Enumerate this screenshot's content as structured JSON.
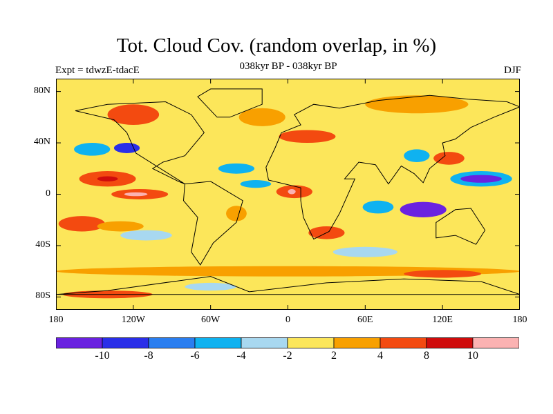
{
  "header": {
    "title": "Tot. Cloud Cov. (random overlap, in %)",
    "subtitle": "038kyr BP - 038kyr BP",
    "experiment": "Expt = tdwzE-tdacE",
    "season": "DJF"
  },
  "map": {
    "lat_labels": [
      "80N",
      "40N",
      "0",
      "40S",
      "80S"
    ],
    "lon_labels": [
      "180",
      "120W",
      "60W",
      "0",
      "60E",
      "120E",
      "180"
    ],
    "lat_values": [
      80,
      40,
      0,
      -40,
      -80
    ],
    "lon_values": [
      -180,
      -120,
      -60,
      0,
      60,
      120,
      180
    ],
    "lat_range": [
      -90,
      90
    ],
    "lon_range": [
      -180,
      180
    ],
    "background_fill": "#fce65a",
    "anomaly_regions": [
      {
        "name": "central-pacific-decrease",
        "lon": -152,
        "lat": 35,
        "rlon": 14,
        "rlat": 5,
        "color": "#0fb2f0"
      },
      {
        "name": "north-pacific-decrease",
        "lon": -125,
        "lat": 36,
        "rlon": 10,
        "rlat": 4,
        "color": "#2a2fe8"
      },
      {
        "name": "tropical-pacific-increase",
        "lon": -140,
        "lat": 12,
        "rlon": 22,
        "rlat": 6,
        "color": "#f34a10"
      },
      {
        "name": "tropical-pacific-core",
        "lon": -140,
        "lat": 12,
        "rlon": 8,
        "rlat": 2,
        "color": "#cf0c0c"
      },
      {
        "name": "east-pacific-increase",
        "lon": -115,
        "lat": 0,
        "rlon": 22,
        "rlat": 4,
        "color": "#f34a10"
      },
      {
        "name": "east-pacific-core",
        "lon": -118,
        "lat": 0,
        "rlon": 9,
        "rlat": 1.5,
        "color": "#fbb2b2"
      },
      {
        "name": "south-pacific-increase",
        "lon": -160,
        "lat": -23,
        "rlon": 18,
        "rlat": 6,
        "color": "#f34a10"
      },
      {
        "name": "south-pacific-band",
        "lon": -130,
        "lat": -25,
        "rlon": 18,
        "rlat": 4,
        "color": "#f8a000"
      },
      {
        "name": "south-pacific-decrease",
        "lon": -110,
        "lat": -32,
        "rlon": 20,
        "rlat": 4,
        "color": "#a8d8f0"
      },
      {
        "name": "north-atlantic-decrease",
        "lon": -40,
        "lat": 20,
        "rlon": 14,
        "rlat": 4,
        "color": "#0fb2f0"
      },
      {
        "name": "equatorial-atlantic-decrease",
        "lon": -25,
        "lat": 8,
        "rlon": 12,
        "rlat": 3,
        "color": "#0fb2f0"
      },
      {
        "name": "gulf-of-guinea-increase",
        "lon": 5,
        "lat": 2,
        "rlon": 14,
        "rlat": 5,
        "color": "#f34a10"
      },
      {
        "name": "gulf-of-guinea-core",
        "lon": 3,
        "lat": 2,
        "rlon": 3,
        "rlat": 2,
        "color": "#fbb2b2"
      },
      {
        "name": "south-atlantic-increase",
        "lon": -40,
        "lat": -15,
        "rlon": 8,
        "rlat": 6,
        "color": "#f8a000"
      },
      {
        "name": "south-africa-increase",
        "lon": 30,
        "lat": -30,
        "rlon": 14,
        "rlat": 5,
        "color": "#f34a10"
      },
      {
        "name": "indian-ocean-decrease",
        "lon": 70,
        "lat": -10,
        "rlon": 12,
        "rlat": 5,
        "color": "#0fb2f0"
      },
      {
        "name": "indonesia-decrease",
        "lon": 105,
        "lat": -12,
        "rlon": 18,
        "rlat": 6,
        "color": "#6a22e0"
      },
      {
        "name": "north-west-pacific-decrease",
        "lon": 150,
        "lat": 12,
        "rlon": 24,
        "rlat": 6,
        "color": "#0fb2f0"
      },
      {
        "name": "north-west-pacific-core",
        "lon": 150,
        "lat": 12,
        "rlon": 16,
        "rlat": 3,
        "color": "#6a22e0"
      },
      {
        "name": "japan-increase",
        "lon": 125,
        "lat": 28,
        "rlon": 12,
        "rlat": 5,
        "color": "#f34a10"
      },
      {
        "name": "east-asia-decrease",
        "lon": 100,
        "lat": 30,
        "rlon": 10,
        "rlat": 5,
        "color": "#0fb2f0"
      },
      {
        "name": "mediterranean-increase",
        "lon": 15,
        "lat": 45,
        "rlon": 22,
        "rlat": 5,
        "color": "#f34a10"
      },
      {
        "name": "north-atlantic-high-increase",
        "lon": -20,
        "lat": 60,
        "rlon": 18,
        "rlat": 7,
        "color": "#f8a000"
      },
      {
        "name": "canada-increase",
        "lon": -120,
        "lat": 62,
        "rlon": 20,
        "rlat": 8,
        "color": "#f34a10"
      },
      {
        "name": "siberia-increase",
        "lon": 100,
        "lat": 70,
        "rlon": 40,
        "rlat": 7,
        "color": "#f8a000"
      },
      {
        "name": "southern-ocean-band",
        "lon": 0,
        "lat": -60,
        "rlon": 180,
        "rlat": 4,
        "color": "#f8a000"
      },
      {
        "name": "southern-ocean-increase",
        "lon": 120,
        "lat": -62,
        "rlon": 30,
        "rlat": 3,
        "color": "#f34a10"
      },
      {
        "name": "antarctic-coast-increase",
        "lon": -140,
        "lat": -78,
        "rlon": 35,
        "rlat": 3,
        "color": "#f34a10"
      },
      {
        "name": "antarctic-coast-decrease",
        "lon": -60,
        "lat": -72,
        "rlon": 20,
        "rlat": 3,
        "color": "#a8d8f0"
      },
      {
        "name": "south-indian-decrease",
        "lon": 60,
        "lat": -45,
        "rlon": 25,
        "rlat": 4,
        "color": "#a8d8f0"
      }
    ],
    "continents": [
      {
        "name": "north-america-outline",
        "points": [
          [
            -165,
            65
          ],
          [
            -140,
            70
          ],
          [
            -95,
            72
          ],
          [
            -75,
            62
          ],
          [
            -65,
            48
          ],
          [
            -80,
            30
          ],
          [
            -97,
            25
          ],
          [
            -105,
            20
          ],
          [
            -85,
            10
          ],
          [
            -80,
            8
          ],
          [
            -118,
            32
          ],
          [
            -125,
            48
          ],
          [
            -135,
            58
          ],
          [
            -165,
            65
          ]
        ]
      },
      {
        "name": "greenland-outline",
        "points": [
          [
            -55,
            60
          ],
          [
            -45,
            60
          ],
          [
            -20,
            70
          ],
          [
            -20,
            82
          ],
          [
            -60,
            82
          ],
          [
            -70,
            76
          ],
          [
            -55,
            60
          ]
        ]
      },
      {
        "name": "south-america-outline",
        "points": [
          [
            -80,
            8
          ],
          [
            -60,
            10
          ],
          [
            -35,
            -5
          ],
          [
            -40,
            -22
          ],
          [
            -58,
            -38
          ],
          [
            -68,
            -55
          ],
          [
            -75,
            -45
          ],
          [
            -70,
            -18
          ],
          [
            -81,
            -5
          ],
          [
            -80,
            8
          ]
        ]
      },
      {
        "name": "eurasia-africa-outline",
        "points": [
          [
            -10,
            36
          ],
          [
            -17,
            21
          ],
          [
            -15,
            11
          ],
          [
            10,
            5
          ],
          [
            10,
            -5
          ],
          [
            12,
            -18
          ],
          [
            20,
            -35
          ],
          [
            32,
            -29
          ],
          [
            40,
            -15
          ],
          [
            52,
            12
          ],
          [
            44,
            12
          ],
          [
            55,
            25
          ],
          [
            68,
            23
          ],
          [
            78,
            8
          ],
          [
            88,
            22
          ],
          [
            98,
            16
          ],
          [
            105,
            9
          ],
          [
            110,
            20
          ],
          [
            122,
            30
          ],
          [
            120,
            40
          ],
          [
            130,
            43
          ],
          [
            142,
            52
          ],
          [
            160,
            60
          ],
          [
            180,
            68
          ],
          [
            170,
            72
          ],
          [
            140,
            74
          ],
          [
            110,
            77
          ],
          [
            70,
            73
          ],
          [
            40,
            67
          ],
          [
            20,
            70
          ],
          [
            5,
            62
          ],
          [
            10,
            54
          ],
          [
            -5,
            48
          ],
          [
            -10,
            36
          ]
        ]
      },
      {
        "name": "australia-outline",
        "points": [
          [
            115,
            -22
          ],
          [
            130,
            -12
          ],
          [
            142,
            -11
          ],
          [
            153,
            -28
          ],
          [
            146,
            -39
          ],
          [
            130,
            -32
          ],
          [
            115,
            -34
          ],
          [
            115,
            -22
          ]
        ]
      },
      {
        "name": "antarctica-outline",
        "points": [
          [
            -180,
            -78
          ],
          [
            -140,
            -75
          ],
          [
            -60,
            -64
          ],
          [
            -30,
            -76
          ],
          [
            30,
            -69
          ],
          [
            90,
            -66
          ],
          [
            150,
            -68
          ],
          [
            180,
            -78
          ]
        ]
      }
    ]
  },
  "colorbar": {
    "colors": [
      "#6a22e0",
      "#2a2fe8",
      "#2a7ef0",
      "#0fb2f0",
      "#a8d8f0",
      "#fce65a",
      "#f8a000",
      "#f34a10",
      "#cf0c0c",
      "#fbb2b2"
    ],
    "boundaries": [
      -10,
      -8,
      -6,
      -4,
      -2,
      2,
      4,
      8,
      10
    ],
    "labels": [
      "-10",
      "-8",
      "-6",
      "-4",
      "-2",
      "2",
      "4",
      "8",
      "10"
    ]
  }
}
